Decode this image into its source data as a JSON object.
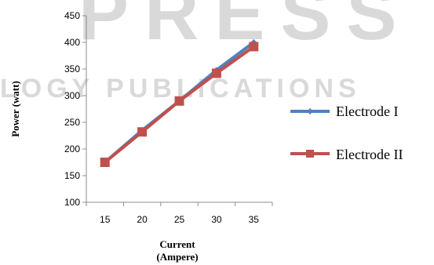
{
  "watermark": {
    "top_text": "PRESS",
    "middle_text": "LOGY PUBLICATIONS"
  },
  "chart_data": {
    "type": "line",
    "title": "",
    "xlabel_line1": "Current",
    "xlabel_line2": "(Ampere)",
    "ylabel": "Power (watt)",
    "x": [
      15,
      20,
      25,
      30,
      35
    ],
    "xticks": [
      "15",
      "20",
      "25",
      "30",
      "35"
    ],
    "ylim": [
      100,
      450
    ],
    "yticks": [
      100,
      150,
      200,
      250,
      300,
      350,
      400,
      450
    ],
    "grid": false,
    "legend_position": "right",
    "series": [
      {
        "name": "Electrode I",
        "values": [
          175,
          235,
          290,
          348,
          400
        ],
        "color": "#4f81bd",
        "marker": "diamond"
      },
      {
        "name": "Electrode II",
        "values": [
          175,
          232,
          290,
          342,
          392
        ],
        "color": "#c0504d",
        "marker": "square"
      }
    ]
  }
}
